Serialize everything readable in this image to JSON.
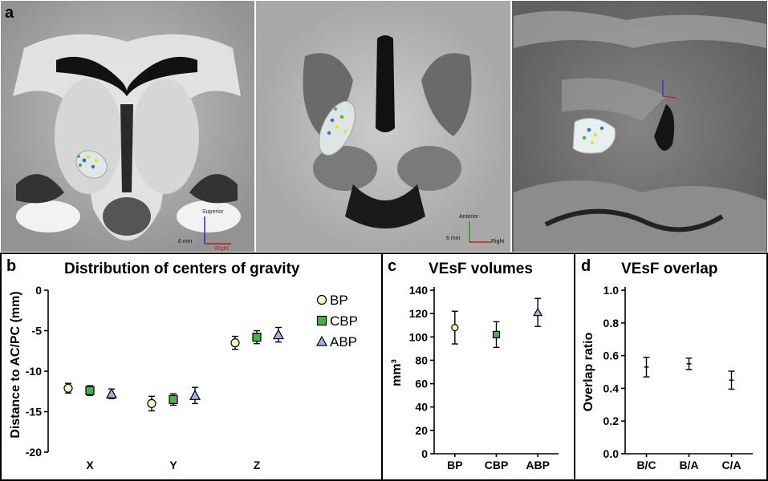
{
  "panel_labels": {
    "a": "a",
    "b": "b",
    "c": "c",
    "d": "d"
  },
  "mri": {
    "images": [
      {
        "name": "coronal",
        "orientation": "Superior",
        "direction": "Right",
        "scale": "6 mm"
      },
      {
        "name": "axial",
        "orientation": "Anterior",
        "direction": "Right",
        "scale": "6 mm"
      },
      {
        "name": "sagittal"
      }
    ]
  },
  "colors": {
    "BP": "#f7f3c6",
    "CBP": "#4daf4a",
    "ABP": "#9fb3dd",
    "axis": "#000000"
  },
  "chart_data": [
    {
      "panel": "b",
      "type": "scatter",
      "title": "Distribution of centers of gravity",
      "xlabel": "",
      "ylabel": "Distance to AC/PC (mm)",
      "categories": [
        "X",
        "Y",
        "Z"
      ],
      "ylim": [
        -20,
        0
      ],
      "yticks": [
        0,
        -5,
        -10,
        -15,
        -20
      ],
      "legend_position": "right",
      "series": [
        {
          "name": "BP",
          "marker": "circle",
          "values": [
            -12.1,
            -14.0,
            -6.5
          ],
          "err": [
            0.6,
            0.9,
            0.8
          ]
        },
        {
          "name": "CBP",
          "marker": "square",
          "values": [
            -12.4,
            -13.5,
            -5.8
          ],
          "err": [
            0.6,
            0.7,
            0.8
          ]
        },
        {
          "name": "ABP",
          "marker": "triangle",
          "values": [
            -12.8,
            -13.0,
            -5.5
          ],
          "err": [
            0.6,
            1.0,
            0.9
          ]
        }
      ]
    },
    {
      "panel": "c",
      "type": "scatter",
      "title": "VEsF volumes",
      "xlabel": "",
      "ylabel": "mm³",
      "categories": [
        "BP",
        "CBP",
        "ABP"
      ],
      "ylim": [
        0,
        140
      ],
      "yticks": [
        0,
        20,
        40,
        60,
        80,
        100,
        120,
        140
      ],
      "values": [
        108,
        102,
        121
      ],
      "err": [
        14,
        11,
        12
      ],
      "markers": [
        "circle",
        "square",
        "triangle"
      ]
    },
    {
      "panel": "d",
      "type": "scatter",
      "title": "VEsF overlap",
      "xlabel": "",
      "ylabel": "Overlap ratio",
      "categories": [
        "B/C",
        "B/A",
        "C/A"
      ],
      "ylim": [
        0,
        1.0
      ],
      "yticks": [
        0.0,
        0.2,
        0.4,
        0.6,
        0.8,
        1.0
      ],
      "values": [
        0.53,
        0.55,
        0.45
      ],
      "err": [
        0.06,
        0.035,
        0.055
      ]
    }
  ]
}
